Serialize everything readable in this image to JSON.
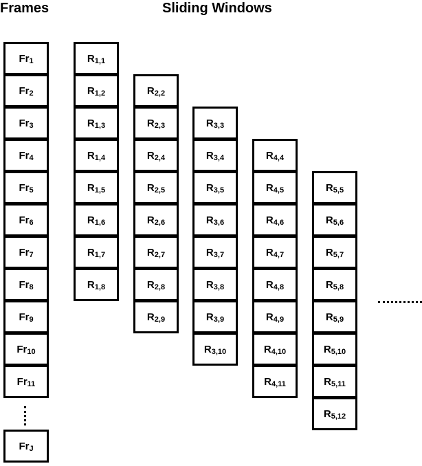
{
  "headings": {
    "frames": "Frames",
    "windows": "Sliding Windows"
  },
  "frames": {
    "items": [
      {
        "base": "Fr",
        "sub": "1"
      },
      {
        "base": "Fr",
        "sub": "2"
      },
      {
        "base": "Fr",
        "sub": "3"
      },
      {
        "base": "Fr",
        "sub": "4"
      },
      {
        "base": "Fr",
        "sub": "5"
      },
      {
        "base": "Fr",
        "sub": "6"
      },
      {
        "base": "Fr",
        "sub": "7"
      },
      {
        "base": "Fr",
        "sub": "8"
      },
      {
        "base": "Fr",
        "sub": "9"
      },
      {
        "base": "Fr",
        "sub": "10"
      },
      {
        "base": "Fr",
        "sub": "11"
      }
    ],
    "last": {
      "base": "Fr",
      "sub": "J"
    }
  },
  "windows": [
    {
      "name": "window-1",
      "items": [
        {
          "base": "R",
          "sub": "1,1"
        },
        {
          "base": "R",
          "sub": "1,2"
        },
        {
          "base": "R",
          "sub": "1,3"
        },
        {
          "base": "R",
          "sub": "1,4"
        },
        {
          "base": "R",
          "sub": "1,5"
        },
        {
          "base": "R",
          "sub": "1,6"
        },
        {
          "base": "R",
          "sub": "1,7"
        },
        {
          "base": "R",
          "sub": "1,8"
        }
      ]
    },
    {
      "name": "window-2",
      "items": [
        {
          "base": "R",
          "sub": "2,2"
        },
        {
          "base": "R",
          "sub": "2,3"
        },
        {
          "base": "R",
          "sub": "2,4"
        },
        {
          "base": "R",
          "sub": "2,5"
        },
        {
          "base": "R",
          "sub": "2,6"
        },
        {
          "base": "R",
          "sub": "2,7"
        },
        {
          "base": "R",
          "sub": "2,8"
        },
        {
          "base": "R",
          "sub": "2,9"
        }
      ]
    },
    {
      "name": "window-3",
      "items": [
        {
          "base": "R",
          "sub": "3,3"
        },
        {
          "base": "R",
          "sub": "3,4"
        },
        {
          "base": "R",
          "sub": "3,5"
        },
        {
          "base": "R",
          "sub": "3,6"
        },
        {
          "base": "R",
          "sub": "3,7"
        },
        {
          "base": "R",
          "sub": "3,8"
        },
        {
          "base": "R",
          "sub": "3,9"
        },
        {
          "base": "R",
          "sub": "3,10"
        }
      ]
    },
    {
      "name": "window-4",
      "items": [
        {
          "base": "R",
          "sub": "4,4"
        },
        {
          "base": "R",
          "sub": "4,5"
        },
        {
          "base": "R",
          "sub": "4,6"
        },
        {
          "base": "R",
          "sub": "4,7"
        },
        {
          "base": "R",
          "sub": "4,8"
        },
        {
          "base": "R",
          "sub": "4,9"
        },
        {
          "base": "R",
          "sub": "4,10"
        },
        {
          "base": "R",
          "sub": "4,11"
        }
      ]
    },
    {
      "name": "window-5",
      "items": [
        {
          "base": "R",
          "sub": "5,5"
        },
        {
          "base": "R",
          "sub": "5,6"
        },
        {
          "base": "R",
          "sub": "5,7"
        },
        {
          "base": "R",
          "sub": "5,8"
        },
        {
          "base": "R",
          "sub": "5,9"
        },
        {
          "base": "R",
          "sub": "5,10"
        },
        {
          "base": "R",
          "sub": "5,11"
        },
        {
          "base": "R",
          "sub": "5,12"
        }
      ]
    }
  ]
}
